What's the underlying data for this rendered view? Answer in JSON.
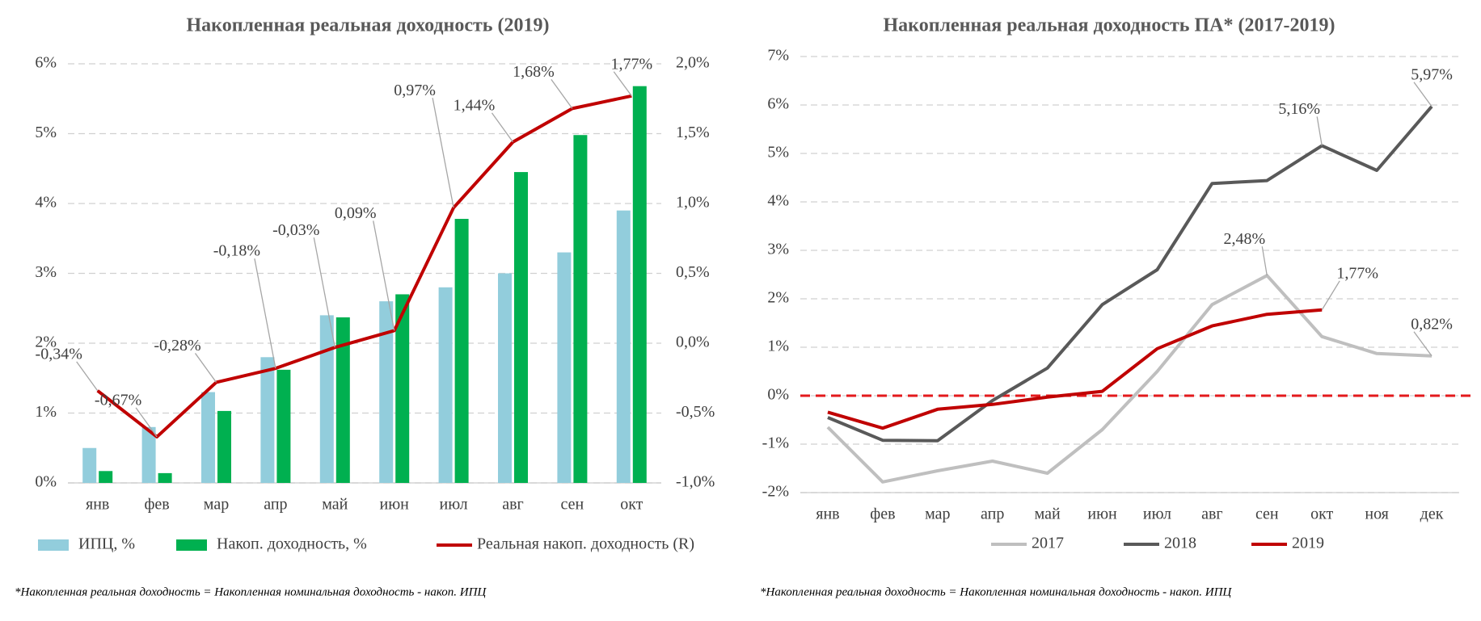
{
  "chart_data": [
    {
      "type": "combo",
      "title": "Накопленная реальная доходность (2019)",
      "categories": [
        "янв",
        "фев",
        "мар",
        "апр",
        "май",
        "июн",
        "июл",
        "авг",
        "сен",
        "окт"
      ],
      "series": [
        {
          "name": "ИПЦ, %",
          "color": "#92cddc",
          "kind": "bar",
          "values": [
            0.5,
            0.8,
            1.3,
            1.8,
            2.4,
            2.6,
            2.8,
            3.0,
            3.3,
            3.9
          ]
        },
        {
          "name": "Накоп. доходность, %",
          "color": "#00b050",
          "kind": "bar",
          "values": [
            0.17,
            0.14,
            1.03,
            1.62,
            2.37,
            2.7,
            3.78,
            4.45,
            4.98,
            5.68
          ]
        },
        {
          "name": "Реальная накоп. доходность (R)",
          "color": "#c00000",
          "kind": "line",
          "axis": "y2",
          "values": [
            -0.34,
            -0.67,
            -0.28,
            -0.18,
            -0.03,
            0.09,
            0.97,
            1.44,
            1.68,
            1.77
          ],
          "value_labels": [
            "-0,34%",
            "-0,67%",
            "-0,28%",
            "-0,18%",
            "-0,03%",
            "0,09%",
            "0,97%",
            "1,44%",
            "1,68%",
            "1,77%"
          ]
        }
      ],
      "ylim": [
        0,
        6
      ],
      "yticks": [
        {
          "value": 0,
          "label": "0%"
        },
        {
          "value": 1,
          "label": "1%"
        },
        {
          "value": 2,
          "label": "2%"
        },
        {
          "value": 3,
          "label": "3%"
        },
        {
          "value": 4,
          "label": "4%"
        },
        {
          "value": 5,
          "label": "5%"
        },
        {
          "value": 6,
          "label": "6%"
        }
      ],
      "y2lim": [
        -1,
        2
      ],
      "y2ticks": [
        {
          "value": -1,
          "label": "-1,0%"
        },
        {
          "value": -0.5,
          "label": "-0,5%"
        },
        {
          "value": 0,
          "label": "0,0%"
        },
        {
          "value": 0.5,
          "label": "0,5%"
        },
        {
          "value": 1,
          "label": "1,0%"
        },
        {
          "value": 1.5,
          "label": "1,5%"
        },
        {
          "value": 2,
          "label": "2,0%"
        }
      ],
      "grid": true,
      "legend": "bottom",
      "note": "*Накопленная реальная доходность = Накопленная номинальная доходность - накоп. ИПЦ"
    },
    {
      "type": "line",
      "title": "Накопленная реальная доходность ПА* (2017-2019)",
      "categories": [
        "янв",
        "фев",
        "мар",
        "апр",
        "май",
        "июн",
        "июл",
        "авг",
        "сен",
        "окт",
        "ноя",
        "дек"
      ],
      "series": [
        {
          "name": "2017",
          "color": "#bfbfbf",
          "values": [
            -0.65,
            -1.78,
            -1.55,
            -1.35,
            -1.6,
            -0.7,
            0.5,
            1.88,
            2.48,
            1.22,
            0.87,
            0.82
          ],
          "value_labels": [
            null,
            null,
            null,
            null,
            null,
            null,
            null,
            null,
            "2,48%",
            null,
            null,
            "0,82%"
          ]
        },
        {
          "name": "2018",
          "color": "#595959",
          "values": [
            -0.45,
            -0.92,
            -0.93,
            -0.1,
            0.57,
            1.88,
            2.6,
            4.38,
            4.44,
            5.16,
            4.65,
            5.97
          ],
          "value_labels": [
            null,
            null,
            null,
            null,
            null,
            null,
            null,
            null,
            null,
            "5,16%",
            null,
            "5,97%"
          ]
        },
        {
          "name": "2019",
          "color": "#c00000",
          "values": [
            -0.34,
            -0.67,
            -0.28,
            -0.18,
            -0.03,
            0.09,
            0.97,
            1.44,
            1.68,
            1.77,
            null,
            null
          ],
          "value_labels": [
            null,
            null,
            null,
            null,
            null,
            null,
            null,
            null,
            null,
            "1,77%",
            null,
            null
          ]
        }
      ],
      "ylim": [
        -2,
        7
      ],
      "yticks": [
        {
          "value": -2,
          "label": "-2%"
        },
        {
          "value": -1,
          "label": "-1%"
        },
        {
          "value": 0,
          "label": "0%"
        },
        {
          "value": 1,
          "label": "1%"
        },
        {
          "value": 2,
          "label": "2%"
        },
        {
          "value": 3,
          "label": "3%"
        },
        {
          "value": 4,
          "label": "4%"
        },
        {
          "value": 5,
          "label": "5%"
        },
        {
          "value": 6,
          "label": "6%"
        },
        {
          "value": 7,
          "label": "7%"
        }
      ],
      "hline": {
        "value": 0,
        "color": "#e31a1c"
      },
      "grid": true,
      "legend": "bottom",
      "note": "*Накопленная реальная доходность = Накопленная номинальная доходность - накоп. ИПЦ"
    }
  ]
}
